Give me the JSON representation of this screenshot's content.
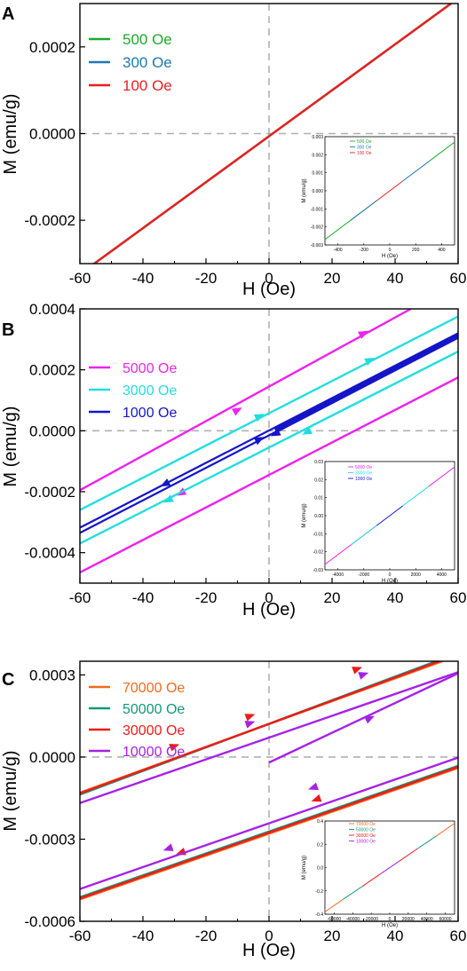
{
  "chart_data": [
    {
      "panel_label": "A",
      "type": "line",
      "xlabel": "H (Oe)",
      "ylabel": "M (emu/g)",
      "xlim": [
        -60,
        60
      ],
      "ylim": [
        -0.0003,
        0.0003
      ],
      "xticks": [
        "-60",
        "-40",
        "-20",
        "0",
        "20",
        "40",
        "60"
      ],
      "yticks": [
        {
          "value": 0.0002,
          "label": "0.0002"
        },
        {
          "value": 0.0,
          "label": "0.0000"
        },
        {
          "value": -0.0002,
          "label": "-0.0002"
        }
      ],
      "legend_position": "top-left",
      "series": [
        {
          "name": "500 Oe",
          "color": "#1aaa2a",
          "lines": [
            [
              [
                -56,
                -0.000303
              ],
              [
                60,
                0.000312
              ]
            ]
          ],
          "arrows": []
        },
        {
          "name": "300 Oe",
          "color": "#1f78b4",
          "lines": [
            [
              [
                -56,
                -0.000303
              ],
              [
                60,
                0.000312
              ]
            ]
          ],
          "arrows": []
        },
        {
          "name": "100 Oe",
          "color": "#e8211f",
          "lines": [
            [
              [
                -56,
                -0.000303
              ],
              [
                60,
                0.000312
              ]
            ]
          ],
          "arrows": []
        }
      ],
      "inset": {
        "ylabel": "M (emu/g)",
        "xlabel": "H (Oe)",
        "xlim": [
          -500,
          500
        ],
        "ylim": [
          -0.003,
          0.003
        ],
        "xticks": [
          "-400",
          "-200",
          "0",
          "200",
          "400"
        ],
        "yticks": [
          {
            "value": 0.003,
            "label": "0.003"
          },
          {
            "value": 0.002,
            "label": "0.002"
          },
          {
            "value": 0.001,
            "label": "0.001"
          },
          {
            "value": 0.0,
            "label": "0.000"
          },
          {
            "value": -0.001,
            "label": "-0.001"
          },
          {
            "value": -0.002,
            "label": "-0.002"
          },
          {
            "value": -0.003,
            "label": "-0.003"
          }
        ],
        "legend": [
          "500 Oe",
          "300 Oe",
          "100 Oe"
        ],
        "segments": [
          {
            "color": "#1aaa2a",
            "from": [
              -500,
              -0.0027
            ],
            "to": [
              -100,
              -0.00054
            ]
          },
          {
            "color": "#1f78b4",
            "from": [
              -300,
              -0.00162
            ],
            "to": [
              -100,
              -0.00054
            ]
          },
          {
            "color": "#e8211f",
            "from": [
              -100,
              -0.00054
            ],
            "to": [
              100,
              0.00054
            ]
          },
          {
            "color": "#1f78b4",
            "from": [
              100,
              0.00054
            ],
            "to": [
              300,
              0.00162
            ]
          },
          {
            "color": "#1aaa2a",
            "from": [
              300,
              0.00162
            ],
            "to": [
              500,
              0.0027
            ]
          }
        ]
      }
    },
    {
      "panel_label": "B",
      "type": "line",
      "xlabel": "H (Oe)",
      "ylabel": "M (emu/g)",
      "xlim": [
        -60,
        60
      ],
      "ylim": [
        -0.0005,
        0.0004
      ],
      "xticks": [
        "-60",
        "-40",
        "-20",
        "0",
        "20",
        "40",
        "60"
      ],
      "yticks": [
        {
          "value": 0.0004,
          "label": "0.0004"
        },
        {
          "value": 0.0002,
          "label": "0.0002"
        },
        {
          "value": 0.0,
          "label": "0.0000"
        },
        {
          "value": -0.0002,
          "label": "-0.0002"
        },
        {
          "value": -0.0004,
          "label": "-0.0004"
        }
      ],
      "legend_position": "top-left",
      "series": [
        {
          "name": "5000 Oe",
          "color": "#ee22ee",
          "lines": [
            [
              [
                -60,
                -0.000195
              ],
              [
                45,
                0.0004
              ]
            ],
            [
              [
                -60,
                -0.000465
              ],
              [
                60,
                0.000175
              ]
            ]
          ],
          "arrows": [
            {
              "x": 30,
              "y": 0.00032,
              "dir": "right"
            },
            {
              "x": -10,
              "y": 6.8e-05,
              "dir": "right"
            },
            {
              "x": -28,
              "y": -0.000205,
              "dir": "left"
            }
          ]
        },
        {
          "name": "3000 Oe",
          "color": "#22dde0",
          "lines": [
            [
              [
                -60,
                -0.00026
              ],
              [
                60,
                0.000375
              ]
            ]
          ],
          "arrows": [
            {
              "x": 32,
              "y": 0.000232,
              "dir": "right"
            },
            {
              "x": -3,
              "y": 4.8e-05,
              "dir": "right"
            },
            {
              "x": 12,
              "y": -5e-06,
              "dir": "left"
            },
            {
              "x": -32,
              "y": -0.000228,
              "dir": "left"
            }
          ]
        },
        {
          "name": "3000 Oe",
          "color": "#22dde0",
          "lines": [
            [
              [
                -60,
                -0.00037
              ],
              [
                60,
                0.00026
              ]
            ]
          ],
          "arrows": []
        },
        {
          "name": "1000 Oe",
          "color": "#1515c8",
          "lines": [
            [
              [
                -60,
                -0.000335
              ],
              [
                60,
                0.000305
              ]
            ],
            [
              [
                -60,
                -0.000318
              ],
              [
                60,
                0.00032
              ]
            ]
          ],
          "arrows": [
            {
              "x": -3,
              "y": -2.8e-05,
              "dir": "right"
            },
            {
              "x": 2,
              "y": -1e-05,
              "dir": "left"
            },
            {
              "x": -33,
              "y": -0.000175,
              "dir": "left"
            }
          ]
        }
      ],
      "inset": {
        "ylabel": "M (emu/g)",
        "xlabel": "H (Oe)",
        "xlim": [
          -5000,
          5000
        ],
        "ylim": [
          -0.03,
          0.03
        ],
        "xticks": [
          "-4000",
          "-2000",
          "0",
          "2000",
          "4000"
        ],
        "yticks": [
          {
            "value": 0.03,
            "label": "0.03"
          },
          {
            "value": 0.02,
            "label": "0.02"
          },
          {
            "value": 0.01,
            "label": "0.01"
          },
          {
            "value": 0.0,
            "label": "0.00"
          },
          {
            "value": -0.01,
            "label": "-0.01"
          },
          {
            "value": -0.02,
            "label": "-0.02"
          },
          {
            "value": -0.03,
            "label": "-0.03"
          }
        ],
        "legend": [
          "5000 Oe",
          "3000 Oe",
          "1000 Oe"
        ],
        "segments": [
          {
            "color": "#ee22ee",
            "from": [
              -5000,
              -0.027
            ],
            "to": [
              -1000,
              -0.0054
            ]
          },
          {
            "color": "#22dde0",
            "from": [
              -3000,
              -0.0162
            ],
            "to": [
              -1000,
              -0.0054
            ]
          },
          {
            "color": "#1515c8",
            "from": [
              -1000,
              -0.0054
            ],
            "to": [
              1000,
              0.0054
            ]
          },
          {
            "color": "#22dde0",
            "from": [
              1000,
              0.0054
            ],
            "to": [
              3000,
              0.0162
            ]
          },
          {
            "color": "#ee22ee",
            "from": [
              3000,
              0.0162
            ],
            "to": [
              5000,
              0.027
            ]
          }
        ]
      }
    },
    {
      "panel_label": "C",
      "type": "line",
      "xlabel": "H (Oe)",
      "ylabel": "M (emu/g)",
      "xlim": [
        -60,
        60
      ],
      "ylim": [
        -0.0006,
        0.00035
      ],
      "xticks": [
        "-60",
        "-40",
        "-20",
        "0",
        "20",
        "40",
        "60"
      ],
      "yticks": [
        {
          "value": 0.0003,
          "label": "0.0003"
        },
        {
          "value": 0.0,
          "label": "0.0000"
        },
        {
          "value": -0.0003,
          "label": "-0.0003"
        },
        {
          "value": -0.0006,
          "label": "-0.0006"
        }
      ],
      "legend_position": "top-left",
      "series": [
        {
          "name": "70000 Oe",
          "color": "#f26a1b",
          "lines": [
            [
              [
                -60,
                -0.00013
              ],
              [
                55,
                0.00035
              ]
            ],
            [
              [
                -60,
                -0.00052
              ],
              [
                60,
                -4e-05
              ]
            ]
          ],
          "arrows": []
        },
        {
          "name": "50000 Oe",
          "color": "#0f9a78",
          "lines": [
            [
              [
                -60,
                -0.000137
              ],
              [
                53,
                0.00035
              ]
            ],
            [
              [
                -60,
                -0.000512
              ],
              [
                60,
                -3.2e-05
              ]
            ]
          ],
          "arrows": []
        },
        {
          "name": "30000 Oe",
          "color": "#ee1a1a",
          "lines": [
            [
              [
                -60,
                -0.000133
              ],
              [
                54,
                0.00035
              ]
            ],
            [
              [
                -60,
                -0.000516
              ],
              [
                60,
                -3.6e-05
              ]
            ]
          ],
          "arrows": [
            {
              "x": 28,
              "y": 0.000322,
              "dir": "right"
            },
            {
              "x": -6,
              "y": 0.00015,
              "dir": "right"
            },
            {
              "x": -30,
              "y": 4e-05,
              "dir": "right"
            },
            {
              "x": 15,
              "y": -0.000155,
              "dir": "left"
            },
            {
              "x": -28,
              "y": -0.00035,
              "dir": "left"
            }
          ]
        },
        {
          "name": "10000 Oe",
          "color": "#a522e6",
          "lines": [
            [
              [
                -60,
                -0.000168
              ],
              [
                60,
                0.00031
              ]
            ],
            [
              [
                -60,
                -0.000482
              ],
              [
                60,
                -2e-06
              ]
            ],
            [
              [
                0,
                -2e-05
              ],
              [
                60,
                0.000306
              ]
            ]
          ],
          "arrows": [
            {
              "x": 30,
              "y": 0.000302,
              "dir": "right"
            },
            {
              "x": -6,
              "y": 0.000124,
              "dir": "right"
            },
            {
              "x": 32,
              "y": 0.000142,
              "dir": "right"
            },
            {
              "x": 14,
              "y": -0.000112,
              "dir": "left"
            },
            {
              "x": -32,
              "y": -0.000335,
              "dir": "left"
            }
          ]
        }
      ],
      "inset": {
        "ylabel": "M (emu/g)",
        "xlabel": "H (Oe)",
        "xlim": [
          -70000,
          70000
        ],
        "ylim": [
          -0.4,
          0.4
        ],
        "xticks": [
          "-60000",
          "-40000",
          "-20000",
          "0",
          "20000",
          "40000",
          "60000"
        ],
        "yticks": [
          {
            "value": 0.4,
            "label": "0.4"
          },
          {
            "value": 0.2,
            "label": "0.2"
          },
          {
            "value": 0.0,
            "label": "0.0"
          },
          {
            "value": -0.2,
            "label": "-0.2"
          },
          {
            "value": -0.4,
            "label": "-0.4"
          }
        ],
        "legend": [
          "70000 Oe",
          "50000 Oe",
          "30000 Oe",
          "10000 Oe"
        ],
        "segments": [
          {
            "color": "#f26a1b",
            "from": [
              -70000,
              -0.38
            ],
            "to": [
              -50000,
              -0.27
            ]
          },
          {
            "color": "#0f9a78",
            "from": [
              -50000,
              -0.27
            ],
            "to": [
              -30000,
              -0.163
            ]
          },
          {
            "color": "#ee1a1a",
            "from": [
              -30000,
              -0.163
            ],
            "to": [
              -10000,
              -0.054
            ]
          },
          {
            "color": "#a522e6",
            "from": [
              -10000,
              -0.054
            ],
            "to": [
              10000,
              0.054
            ]
          },
          {
            "color": "#ee1a1a",
            "from": [
              10000,
              0.054
            ],
            "to": [
              30000,
              0.163
            ]
          },
          {
            "color": "#0f9a78",
            "from": [
              30000,
              0.163
            ],
            "to": [
              50000,
              0.27
            ]
          },
          {
            "color": "#f26a1b",
            "from": [
              50000,
              0.27
            ],
            "to": [
              70000,
              0.38
            ]
          }
        ]
      }
    }
  ]
}
